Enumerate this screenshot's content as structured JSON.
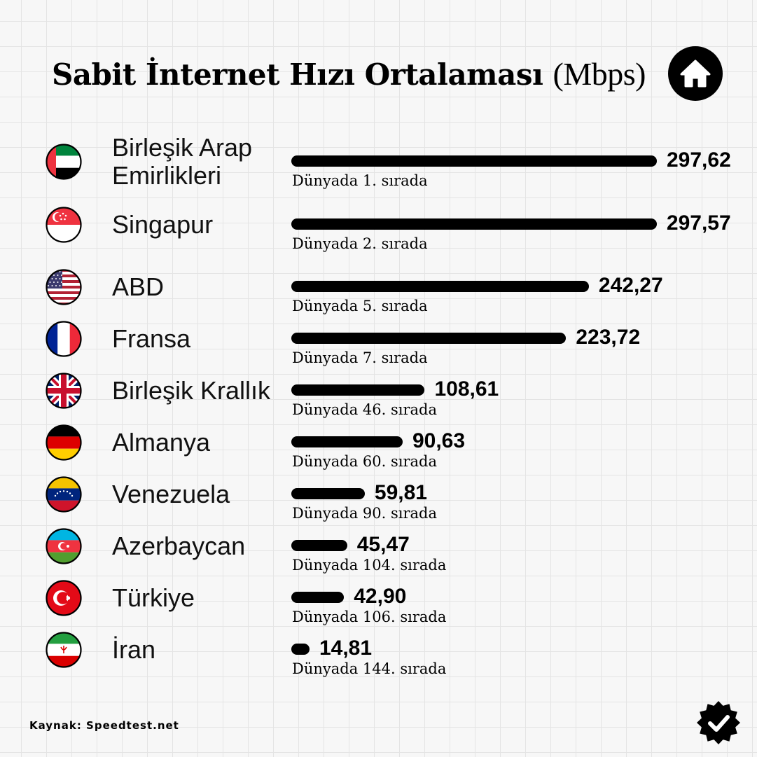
{
  "header": {
    "title": "Sabit İnternet Hızı Ortalaması",
    "unit": "(Mbps)",
    "home_icon": "home-icon"
  },
  "chart_data": {
    "type": "bar",
    "orientation": "horizontal",
    "title": "Sabit İnternet Hızı Ortalaması (Mbps)",
    "categories": [
      "Birleşik Arap\nEmirlikleri",
      "Singapur",
      "ABD",
      "Fransa",
      "Birleşik Krallık",
      "Almanya",
      "Venezuela",
      "Azerbaycan",
      "Türkiye",
      "İran"
    ],
    "values": [
      297.62,
      297.57,
      242.27,
      223.72,
      108.61,
      90.63,
      59.81,
      45.47,
      42.9,
      14.81
    ],
    "value_labels": [
      "297,62",
      "297,57",
      "242,27",
      "223,72",
      "108,61",
      "90,63",
      "59,81",
      "45,47",
      "42,90",
      "14,81"
    ],
    "rank_labels": [
      "Dünyada 1. sırada",
      "Dünyada 2. sırada",
      "Dünyada 5. sırada",
      "Dünyada 7. sırada",
      "Dünyada 46. sırada",
      "Dünyada 60. sırada",
      "Dünyada 90. sırada",
      "Dünyada 104. sırada",
      "Dünyada 106. sırada",
      "Dünyada 144. sırada"
    ],
    "flags": [
      "uae-flag-icon",
      "singapore-flag-icon",
      "usa-flag-icon",
      "france-flag-icon",
      "uk-flag-icon",
      "germany-flag-icon",
      "venezuela-flag-icon",
      "azerbaijan-flag-icon",
      "turkey-flag-icon",
      "iran-flag-icon"
    ],
    "bar_color": "#000000",
    "xlabel": "",
    "ylabel": "",
    "grid": false
  },
  "footer": {
    "source": "Kaynak: Speedtest.net",
    "badge_icon": "verified-badge-icon"
  },
  "colors": {
    "background": "#f7f7f7",
    "grid_lines": "#e4e4e4",
    "bars": "#000000"
  }
}
